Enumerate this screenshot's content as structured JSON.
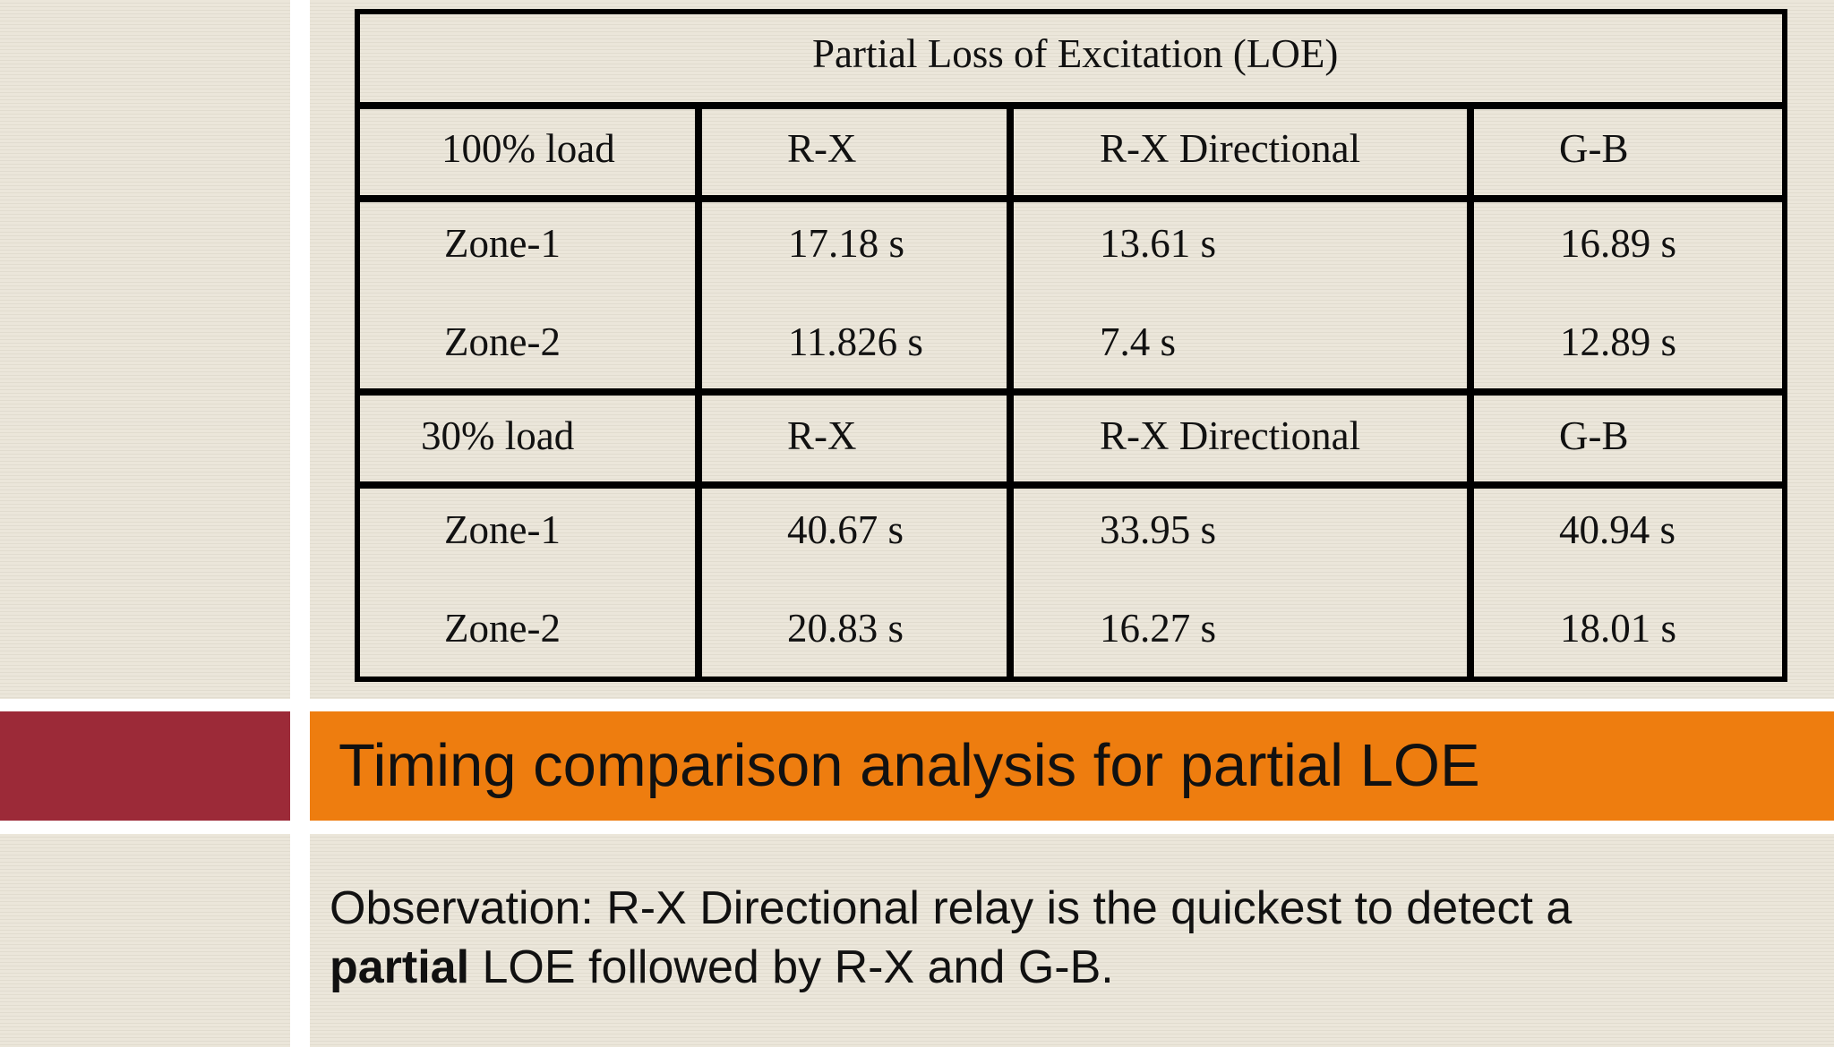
{
  "table": {
    "title": "Partial Loss of Excitation (LOE)",
    "sections": [
      {
        "header": [
          "100% load",
          "R-X",
          "R-X Directional",
          "G-B"
        ],
        "rows": [
          [
            "Zone-1",
            "17.18 s",
            "13.61 s",
            "16.89 s"
          ],
          [
            "Zone-2",
            "11.826 s",
            "7.4 s",
            "12.89 s"
          ]
        ]
      },
      {
        "header": [
          "30% load",
          "R-X",
          "R-X Directional",
          "G-B"
        ],
        "rows": [
          [
            "Zone-1",
            "40.67 s",
            "33.95 s",
            "40.94 s"
          ],
          [
            "Zone-2",
            "20.83 s",
            "16.27 s",
            "18.01 s"
          ]
        ]
      }
    ]
  },
  "slide": {
    "title": "Timing comparison analysis for partial LOE",
    "observation_prefix": "Observation: R-X Directional relay is the quickest to detect a",
    "observation_bold": "partial",
    "observation_suffix": " LOE followed by R-X and G-B."
  },
  "colors": {
    "title_bar": "#ee7d0f",
    "accent_block": "#9c2a38",
    "background": "#e9e4d7"
  }
}
